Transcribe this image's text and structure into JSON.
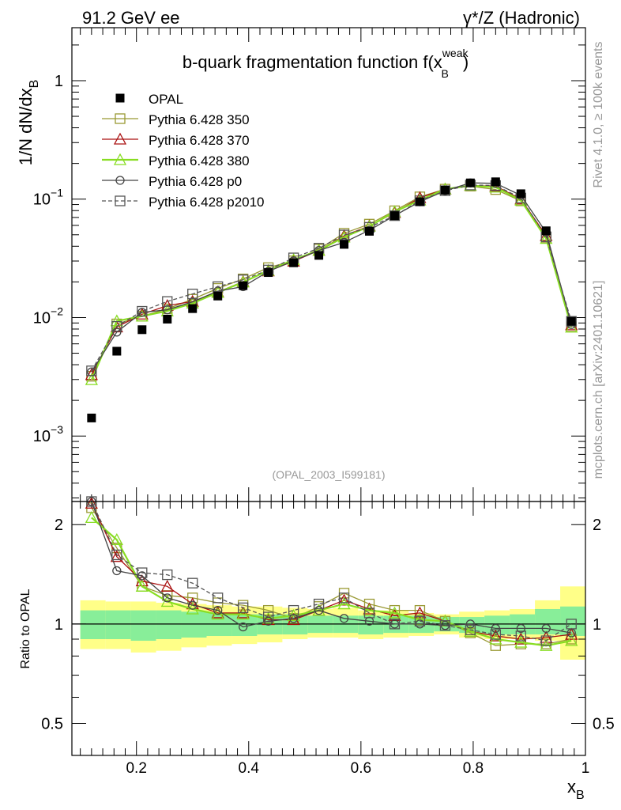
{
  "header": {
    "left": "91.2 GeV ee",
    "right_symbol": "γ*/Z",
    "right_text": "(Hadronic)"
  },
  "side": {
    "rivet": "Rivet 4.1.0, ≥ 100k events",
    "mcplots": "mcplots.cern.ch [arXiv:2401.10621]"
  },
  "chart_data": {
    "type": "scatter",
    "title_main": "b-quark fragmentation function f(x",
    "title_sup": "weak",
    "title_sub": "B",
    "title_close": ")",
    "analysis_id": "(OPAL_2003_I599181)",
    "ylabel_top": "1/N  dN/dx",
    "ylabel_top_sub": "B",
    "ylabel_ratio": "Ratio to OPAL",
    "xlabel": "x",
    "xlabel_sub": "B",
    "xlim": [
      0.085,
      1.0
    ],
    "ylim_top": [
      0.00028,
      2.8
    ],
    "ylim_ratio": [
      0.4,
      2.35
    ],
    "yticks_top": [
      {
        "value": 1,
        "base": "1",
        "exp": ""
      },
      {
        "value": 0.1,
        "base": "10",
        "exp": "−1"
      },
      {
        "value": 0.01,
        "base": "10",
        "exp": "−2"
      },
      {
        "value": 0.001,
        "base": "10",
        "exp": "−3"
      }
    ],
    "yticks_ratio": [
      {
        "value": 2,
        "label": "2"
      },
      {
        "value": 1,
        "label": "1"
      },
      {
        "value": 0.5,
        "label": "0.5"
      }
    ],
    "xticks": [
      {
        "value": 0.2,
        "label": "0.2"
      },
      {
        "value": 0.4,
        "label": "0.4"
      },
      {
        "value": 0.6,
        "label": "0.6"
      },
      {
        "value": 0.8,
        "label": "0.8"
      },
      {
        "value": 1.0,
        "label": "1"
      }
    ],
    "x": [
      0.12,
      0.165,
      0.21,
      0.255,
      0.3,
      0.345,
      0.39,
      0.435,
      0.48,
      0.525,
      0.57,
      0.615,
      0.66,
      0.705,
      0.75,
      0.795,
      0.84,
      0.885,
      0.93,
      0.975
    ],
    "data": {
      "name": "OPAL",
      "color": "#000000",
      "values": [
        0.00142,
        0.0052,
        0.0079,
        0.0097,
        0.0119,
        0.0152,
        0.0186,
        0.024,
        0.029,
        0.0335,
        0.0415,
        0.0535,
        0.0725,
        0.095,
        0.119,
        0.137,
        0.14,
        0.111,
        0.054,
        0.0093
      ]
    },
    "band_edges": [
      0.1,
      0.145,
      0.19,
      0.235,
      0.28,
      0.325,
      0.37,
      0.415,
      0.46,
      0.505,
      0.55,
      0.595,
      0.64,
      0.685,
      0.73,
      0.775,
      0.82,
      0.865,
      0.91,
      0.955,
      1.0
    ],
    "band_inner": [
      [
        0.9,
        1.1
      ],
      [
        0.9,
        1.1
      ],
      [
        0.89,
        1.1
      ],
      [
        0.9,
        1.1
      ],
      [
        0.91,
        1.09
      ],
      [
        0.92,
        1.08
      ],
      [
        0.92,
        1.07
      ],
      [
        0.93,
        1.07
      ],
      [
        0.93,
        1.07
      ],
      [
        0.94,
        1.06
      ],
      [
        0.94,
        1.06
      ],
      [
        0.93,
        1.06
      ],
      [
        0.94,
        1.06
      ],
      [
        0.94,
        1.06
      ],
      [
        0.95,
        1.05
      ],
      [
        0.94,
        1.05
      ],
      [
        0.93,
        1.06
      ],
      [
        0.93,
        1.07
      ],
      [
        0.93,
        1.11
      ],
      [
        0.92,
        1.13
      ]
    ],
    "band_outer": [
      [
        0.84,
        1.18
      ],
      [
        0.84,
        1.17
      ],
      [
        0.82,
        1.17
      ],
      [
        0.83,
        1.16
      ],
      [
        0.85,
        1.15
      ],
      [
        0.86,
        1.14
      ],
      [
        0.87,
        1.13
      ],
      [
        0.88,
        1.13
      ],
      [
        0.9,
        1.12
      ],
      [
        0.91,
        1.11
      ],
      [
        0.91,
        1.12
      ],
      [
        0.9,
        1.1
      ],
      [
        0.91,
        1.1
      ],
      [
        0.92,
        1.08
      ],
      [
        0.93,
        1.07
      ],
      [
        0.91,
        1.09
      ],
      [
        0.9,
        1.1
      ],
      [
        0.9,
        1.11
      ],
      [
        0.89,
        1.18
      ],
      [
        0.78,
        1.3
      ]
    ],
    "series": [
      {
        "name": "Pythia 6.428 350",
        "color": "#999933",
        "marker": "square",
        "dash": false,
        "ratio": [
          2.25,
          1.7,
          1.3,
          1.22,
          1.2,
          1.16,
          1.14,
          1.1,
          1.04,
          1.13,
          1.24,
          1.15,
          1.1,
          1.1,
          1.02,
          0.94,
          0.86,
          0.87,
          0.87,
          0.9
        ]
      },
      {
        "name": "Pythia 6.428 370",
        "color": "#aa1111",
        "marker": "triangle",
        "dash": false,
        "ratio": [
          2.32,
          1.6,
          1.35,
          1.3,
          1.15,
          1.08,
          1.08,
          1.03,
          1.03,
          1.1,
          1.18,
          1.11,
          1.06,
          1.08,
          1.02,
          0.95,
          0.92,
          0.9,
          0.91,
          0.93
        ]
      },
      {
        "name": "Pythia 6.428 380",
        "color": "#88dd22",
        "marker": "triangle",
        "dash": false,
        "ratio": [
          2.1,
          1.8,
          1.3,
          1.17,
          1.11,
          1.07,
          1.07,
          1.04,
          1.06,
          1.1,
          1.15,
          1.1,
          1.08,
          1.03,
          1.02,
          0.95,
          0.9,
          0.88,
          0.86,
          0.89
        ]
      },
      {
        "name": "Pythia 6.428 p0",
        "color": "#444444",
        "marker": "circle",
        "dash": false,
        "ratio": [
          2.45,
          1.45,
          1.4,
          1.2,
          1.14,
          1.1,
          0.98,
          1.02,
          1.04,
          1.1,
          1.04,
          1.02,
          1.0,
          1.0,
          0.99,
          1.0,
          0.97,
          0.97,
          0.97,
          0.94
        ]
      },
      {
        "name": "Pythia 6.428 p2010",
        "color": "#555555",
        "marker": "square",
        "dash": true,
        "ratio": [
          2.5,
          1.62,
          1.43,
          1.41,
          1.33,
          1.2,
          1.12,
          1.05,
          1.1,
          1.15,
          1.2,
          1.08,
          1.0,
          1.02,
          0.99,
          0.96,
          0.93,
          0.92,
          0.89,
          1.0
        ]
      }
    ]
  }
}
